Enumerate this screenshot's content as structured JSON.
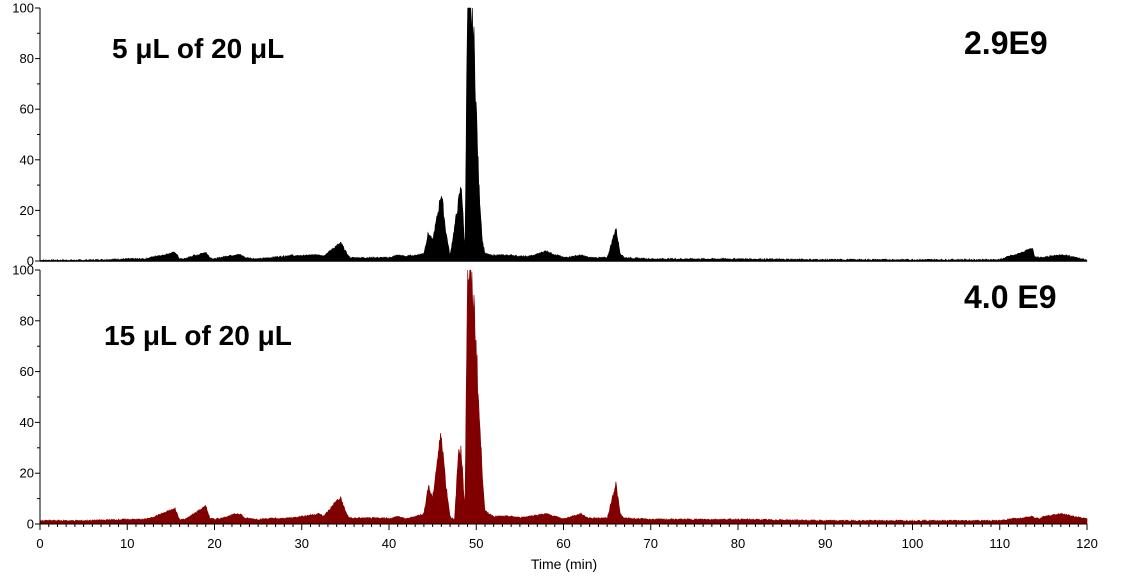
{
  "chart_data": [
    {
      "type": "area",
      "panel": "top",
      "label": "5 μL of 20 μL",
      "intensity": "2.9E9",
      "color": "#000000",
      "ylim": [
        0,
        100
      ],
      "y_ticks": [
        "0",
        "20",
        "40",
        "60",
        "80",
        "100"
      ],
      "x": [
        0,
        5,
        10,
        12,
        15.5,
        16,
        16.5,
        19,
        19.5,
        20,
        22.5,
        23,
        23.5,
        25,
        29,
        32,
        32.5,
        34,
        34.5,
        35,
        35.5,
        40,
        41,
        42,
        44,
        44.5,
        45,
        45.5,
        46,
        46.5,
        47,
        48,
        48.3,
        48.7,
        49,
        49.3,
        49.7,
        50,
        50.3,
        50.7,
        51,
        52,
        54,
        55,
        56,
        58,
        60,
        62,
        63,
        65,
        66,
        66.5,
        67,
        70,
        75,
        80,
        90,
        100,
        110,
        113.8,
        114,
        114.5,
        115,
        117,
        120
      ],
      "y": [
        0,
        0,
        0.5,
        0.5,
        3.5,
        0.5,
        0.5,
        3.5,
        1,
        0.5,
        2.5,
        2.5,
        1,
        0.5,
        2,
        2.5,
        2,
        6,
        7,
        4,
        1,
        1,
        2,
        1.5,
        3,
        11,
        8,
        17,
        27,
        12,
        2,
        24,
        30,
        3,
        100,
        98,
        90,
        60,
        30,
        8,
        3,
        2,
        2,
        1.5,
        1.5,
        4,
        1,
        2,
        1,
        1,
        13,
        3,
        1,
        0.5,
        0.5,
        0.5,
        0.2,
        0.2,
        0.2,
        5,
        1.5,
        1,
        1,
        2.5,
        0
      ]
    },
    {
      "type": "area",
      "panel": "bottom",
      "label": "15 μL of 20 μL",
      "intensity": "4.0 E9",
      "color": "#800000",
      "ylim": [
        0,
        100
      ],
      "y_ticks": [
        "0",
        "20",
        "40",
        "60",
        "80",
        "100"
      ],
      "x": [
        0,
        5,
        10,
        12,
        15.5,
        16,
        16.5,
        19,
        19.5,
        20,
        22.5,
        23,
        23.5,
        25,
        29,
        32,
        32.5,
        34,
        34.5,
        35,
        35.5,
        40,
        41,
        42,
        44,
        44.5,
        45,
        45.5,
        46,
        46.5,
        47,
        47.5,
        48,
        48.3,
        48.7,
        49,
        49.3,
        49.7,
        50,
        50.3,
        50.7,
        51,
        52,
        54,
        55,
        56,
        58,
        60,
        62,
        63,
        65,
        66,
        66.5,
        67,
        70,
        75,
        80,
        90,
        100,
        110,
        113.8,
        114,
        114.5,
        115,
        117,
        120
      ],
      "y": [
        1,
        1,
        1.5,
        1.5,
        6,
        1.5,
        1.5,
        7,
        2,
        1.5,
        4,
        4,
        2,
        1.5,
        2.5,
        4,
        3,
        9,
        10,
        5,
        2,
        2,
        3,
        2,
        4,
        15,
        10,
        24,
        36,
        16,
        3,
        1,
        30,
        28,
        5,
        100,
        95,
        88,
        70,
        45,
        20,
        5,
        3,
        3,
        2.5,
        3,
        4,
        2,
        4,
        2,
        2,
        16,
        4,
        2,
        1.5,
        1.5,
        1.5,
        1,
        1,
        1,
        3,
        2,
        2,
        3,
        4,
        2
      ]
    }
  ],
  "x_axis": {
    "title": "Time (min)",
    "xlim": [
      0,
      120
    ],
    "ticks": [
      "0",
      "10",
      "20",
      "30",
      "40",
      "50",
      "60",
      "70",
      "80",
      "90",
      "100",
      "110",
      "120"
    ]
  }
}
